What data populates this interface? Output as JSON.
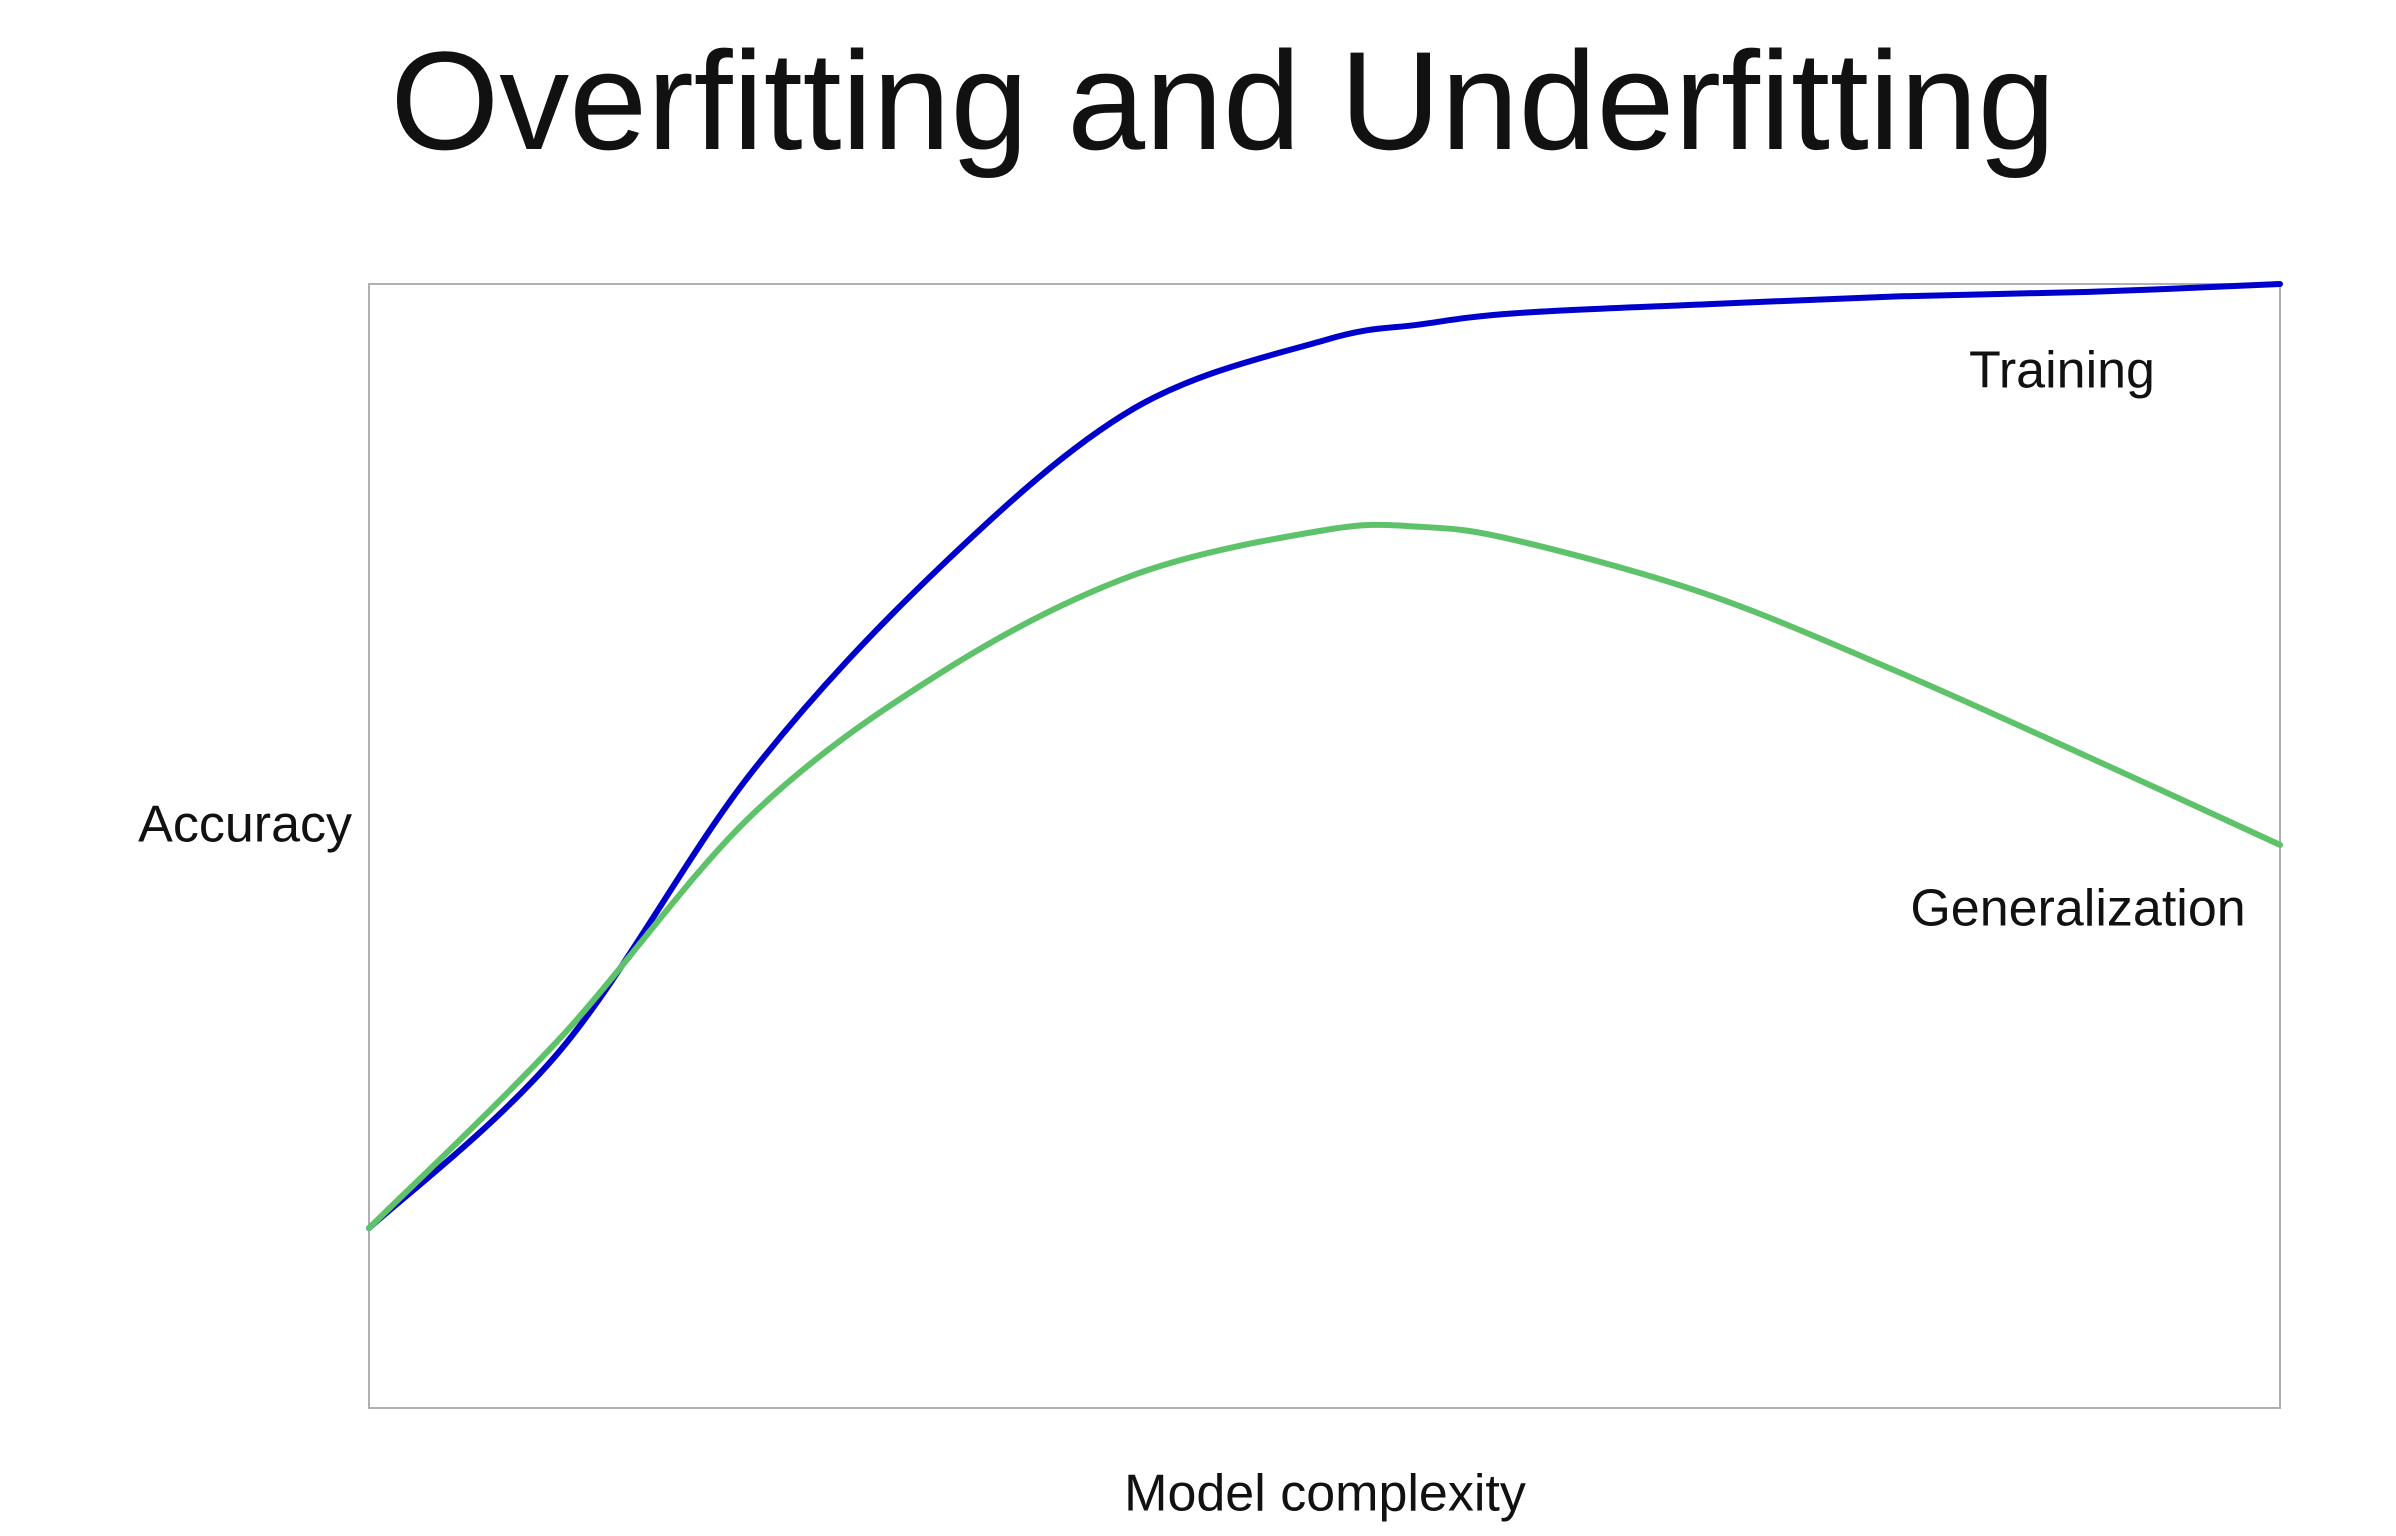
{
  "chart_data": {
    "type": "line",
    "title": "Overfitting and Underfitting",
    "x_label": "Model complexity",
    "y_label": "Accuracy",
    "x": [
      0,
      10,
      20,
      30,
      40,
      50,
      55,
      60,
      70,
      80,
      90,
      100
    ],
    "series": [
      {
        "name": "Training",
        "color": "#0000cc",
        "values": [
          16,
          31.8,
          56.5,
          75,
          88.9,
          95,
          96.4,
          97.4,
          98.2,
          98.9,
          99.3,
          100
        ]
      },
      {
        "name": "Generalization",
        "color": "#5ec26a",
        "values": [
          16,
          32.9,
          52.7,
          65.5,
          74.1,
          78.1,
          78.4,
          77.2,
          72.4,
          65.5,
          57.9,
          50.1
        ]
      }
    ],
    "xlim": [
      0,
      100
    ],
    "ylim": [
      0,
      100
    ],
    "grid": false
  }
}
